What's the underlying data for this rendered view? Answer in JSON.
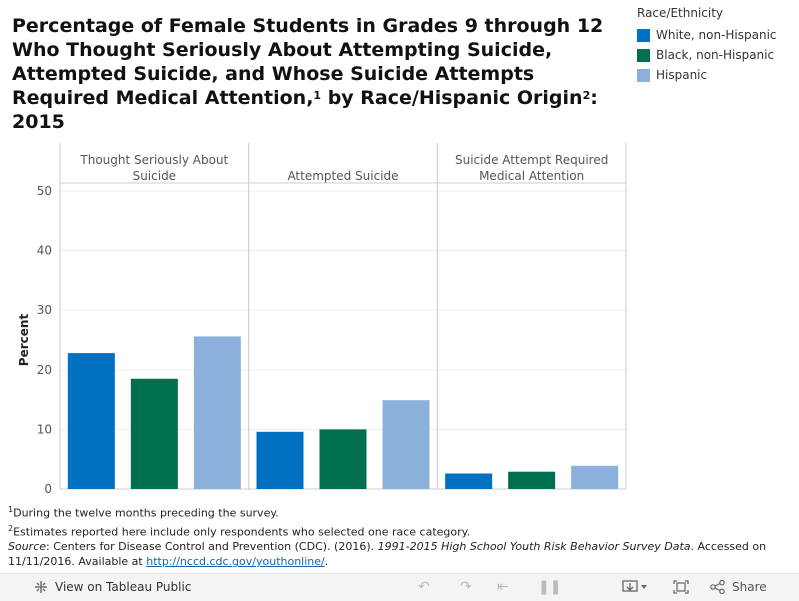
{
  "title": {
    "line1": "Percentage of Female Students in Grades 9 through 12",
    "line2": "Who Thought Seriously About Attempting Suicide,",
    "line3": "Attempted Suicide, and Whose Suicide Attempts",
    "line4a": "Required Medical Attention,",
    "sup1": "1",
    "line4b": " by Race/Hispanic Origin",
    "sup2": "2",
    "line4c": ":",
    "line5": "2015"
  },
  "legend": {
    "title": "Race/Ethnicity",
    "items": [
      {
        "label": "White, non-Hispanic",
        "color": "#0070c0"
      },
      {
        "label": "Black, non-Hispanic",
        "color": "#006f4f"
      },
      {
        "label": "Hispanic",
        "color": "#8bb0dc"
      }
    ]
  },
  "chart_data": {
    "type": "bar",
    "ylabel": "Percent",
    "ylim": [
      0,
      50
    ],
    "yticks": [
      0,
      10,
      20,
      30,
      40,
      50
    ],
    "grid": true,
    "legend_position": "top-right",
    "panels": [
      {
        "label_lines": [
          "Thought Seriously About",
          "Suicide"
        ]
      },
      {
        "label_lines": [
          "Attempted Suicide"
        ]
      },
      {
        "label_lines": [
          "Suicide Attempt Required",
          "Medical Attention"
        ]
      }
    ],
    "series": [
      {
        "name": "White, non-Hispanic",
        "color": "#0070c0",
        "values": [
          22.8,
          9.6,
          2.6
        ]
      },
      {
        "name": "Black, non-Hispanic",
        "color": "#006f4f",
        "values": [
          18.5,
          10.0,
          2.9
        ]
      },
      {
        "name": "Hispanic",
        "color": "#8bb0dc",
        "values": [
          25.6,
          14.9,
          3.9
        ]
      }
    ]
  },
  "footnotes": {
    "sup1": "1",
    "note1": "During the twelve months preceding the survey.",
    "sup2": "2",
    "note2": "Estimates reported here include only respondents who selected one race category.",
    "source_label": "Source",
    "source_pre": ": Centers for Disease Control and Prevention (CDC). (2016). ",
    "source_title": "1991-2015 High School Youth Risk Behavior Survey Data",
    "source_post": ". Accessed on 11/11/2016. Available at ",
    "source_link": "http://nccd.cdc.gov/youthonline/",
    "source_end": "."
  },
  "toolbar": {
    "view_label": "View on Tableau Public",
    "share_label": "Share",
    "icons": [
      "tableau-logo-icon",
      "undo-icon",
      "redo-icon",
      "revert-icon",
      "download-icon",
      "fullscreen-icon",
      "share-icon"
    ]
  }
}
